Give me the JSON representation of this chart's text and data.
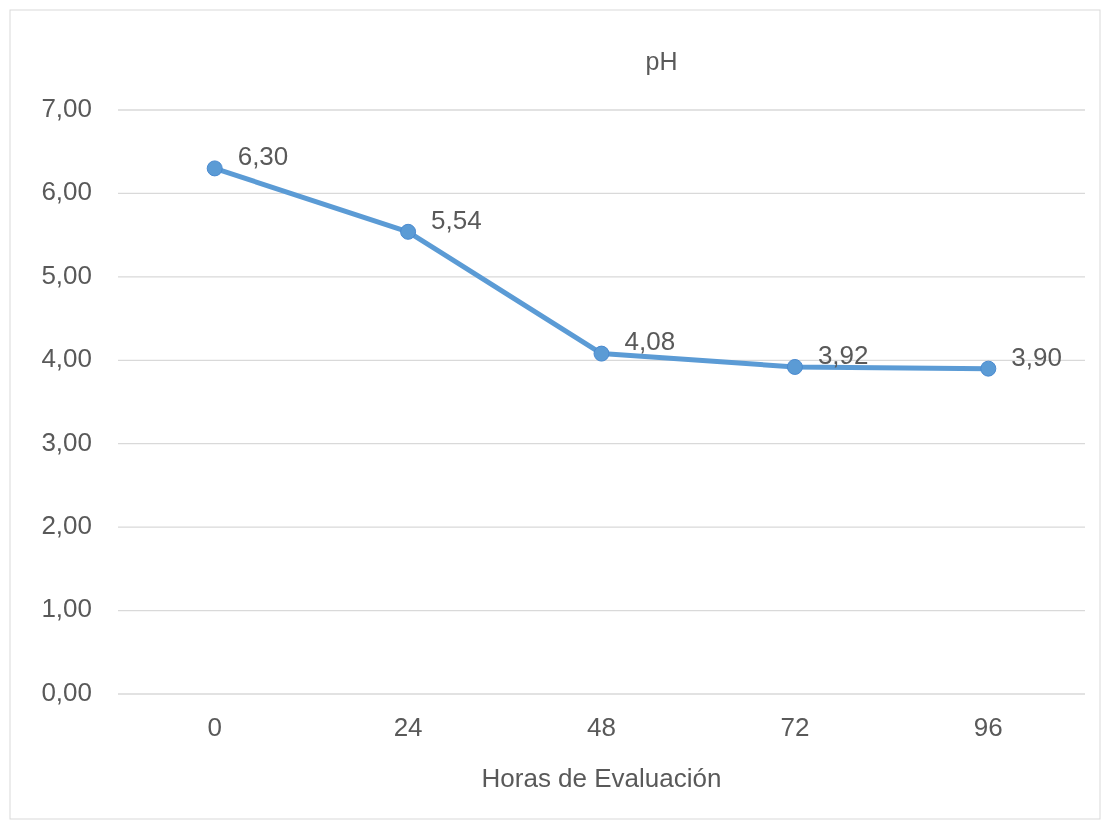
{
  "chart_data": {
    "type": "line",
    "title": "pH",
    "xlabel": "Horas de Evaluación",
    "categories": [
      "0",
      "24",
      "48",
      "72",
      "96"
    ],
    "series": [
      {
        "color": "#5b9bd5",
        "values": [
          6.3,
          5.54,
          4.08,
          3.92,
          3.9
        ],
        "value_labels": [
          "6,30",
          "5,54",
          "4,08",
          "3,92",
          "3,90"
        ]
      }
    ],
    "ylim": [
      0,
      7
    ],
    "yticks": [
      {
        "value": 0,
        "label": "0,00"
      },
      {
        "value": 1,
        "label": "1,00"
      },
      {
        "value": 2,
        "label": "2,00"
      },
      {
        "value": 3,
        "label": "3,00"
      },
      {
        "value": 4,
        "label": "4,00"
      },
      {
        "value": 5,
        "label": "5,00"
      },
      {
        "value": 6,
        "label": "6,00"
      },
      {
        "value": 7,
        "label": "7,00"
      }
    ],
    "grid": "y",
    "marker": "circle",
    "line_style": "solid"
  }
}
